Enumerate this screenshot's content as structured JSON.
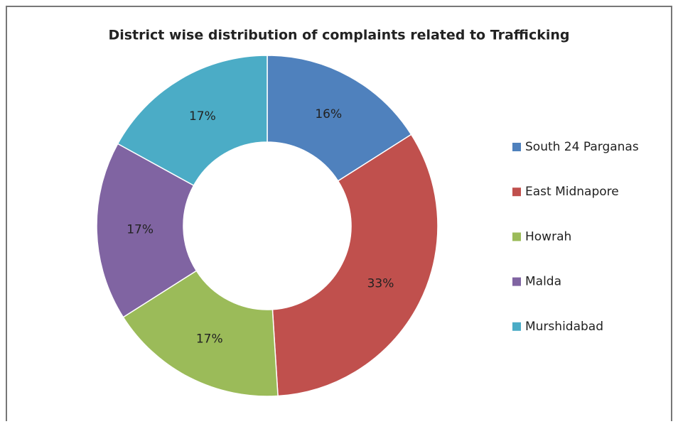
{
  "chart_data": {
    "type": "donut",
    "title": "District wise distribution of complaints related to Trafficking",
    "categories": [
      "South 24 Parganas",
      "East Midnapore",
      "Howrah",
      "Malda",
      "Murshidabad"
    ],
    "values": [
      16,
      33,
      17,
      17,
      17
    ],
    "value_labels": [
      "16%",
      "33%",
      "17%",
      "17%",
      "17%"
    ],
    "colors": [
      "#4f81bd",
      "#c0504d",
      "#9bbb59",
      "#8064a2",
      "#4bacc6"
    ],
    "legend": "right"
  }
}
